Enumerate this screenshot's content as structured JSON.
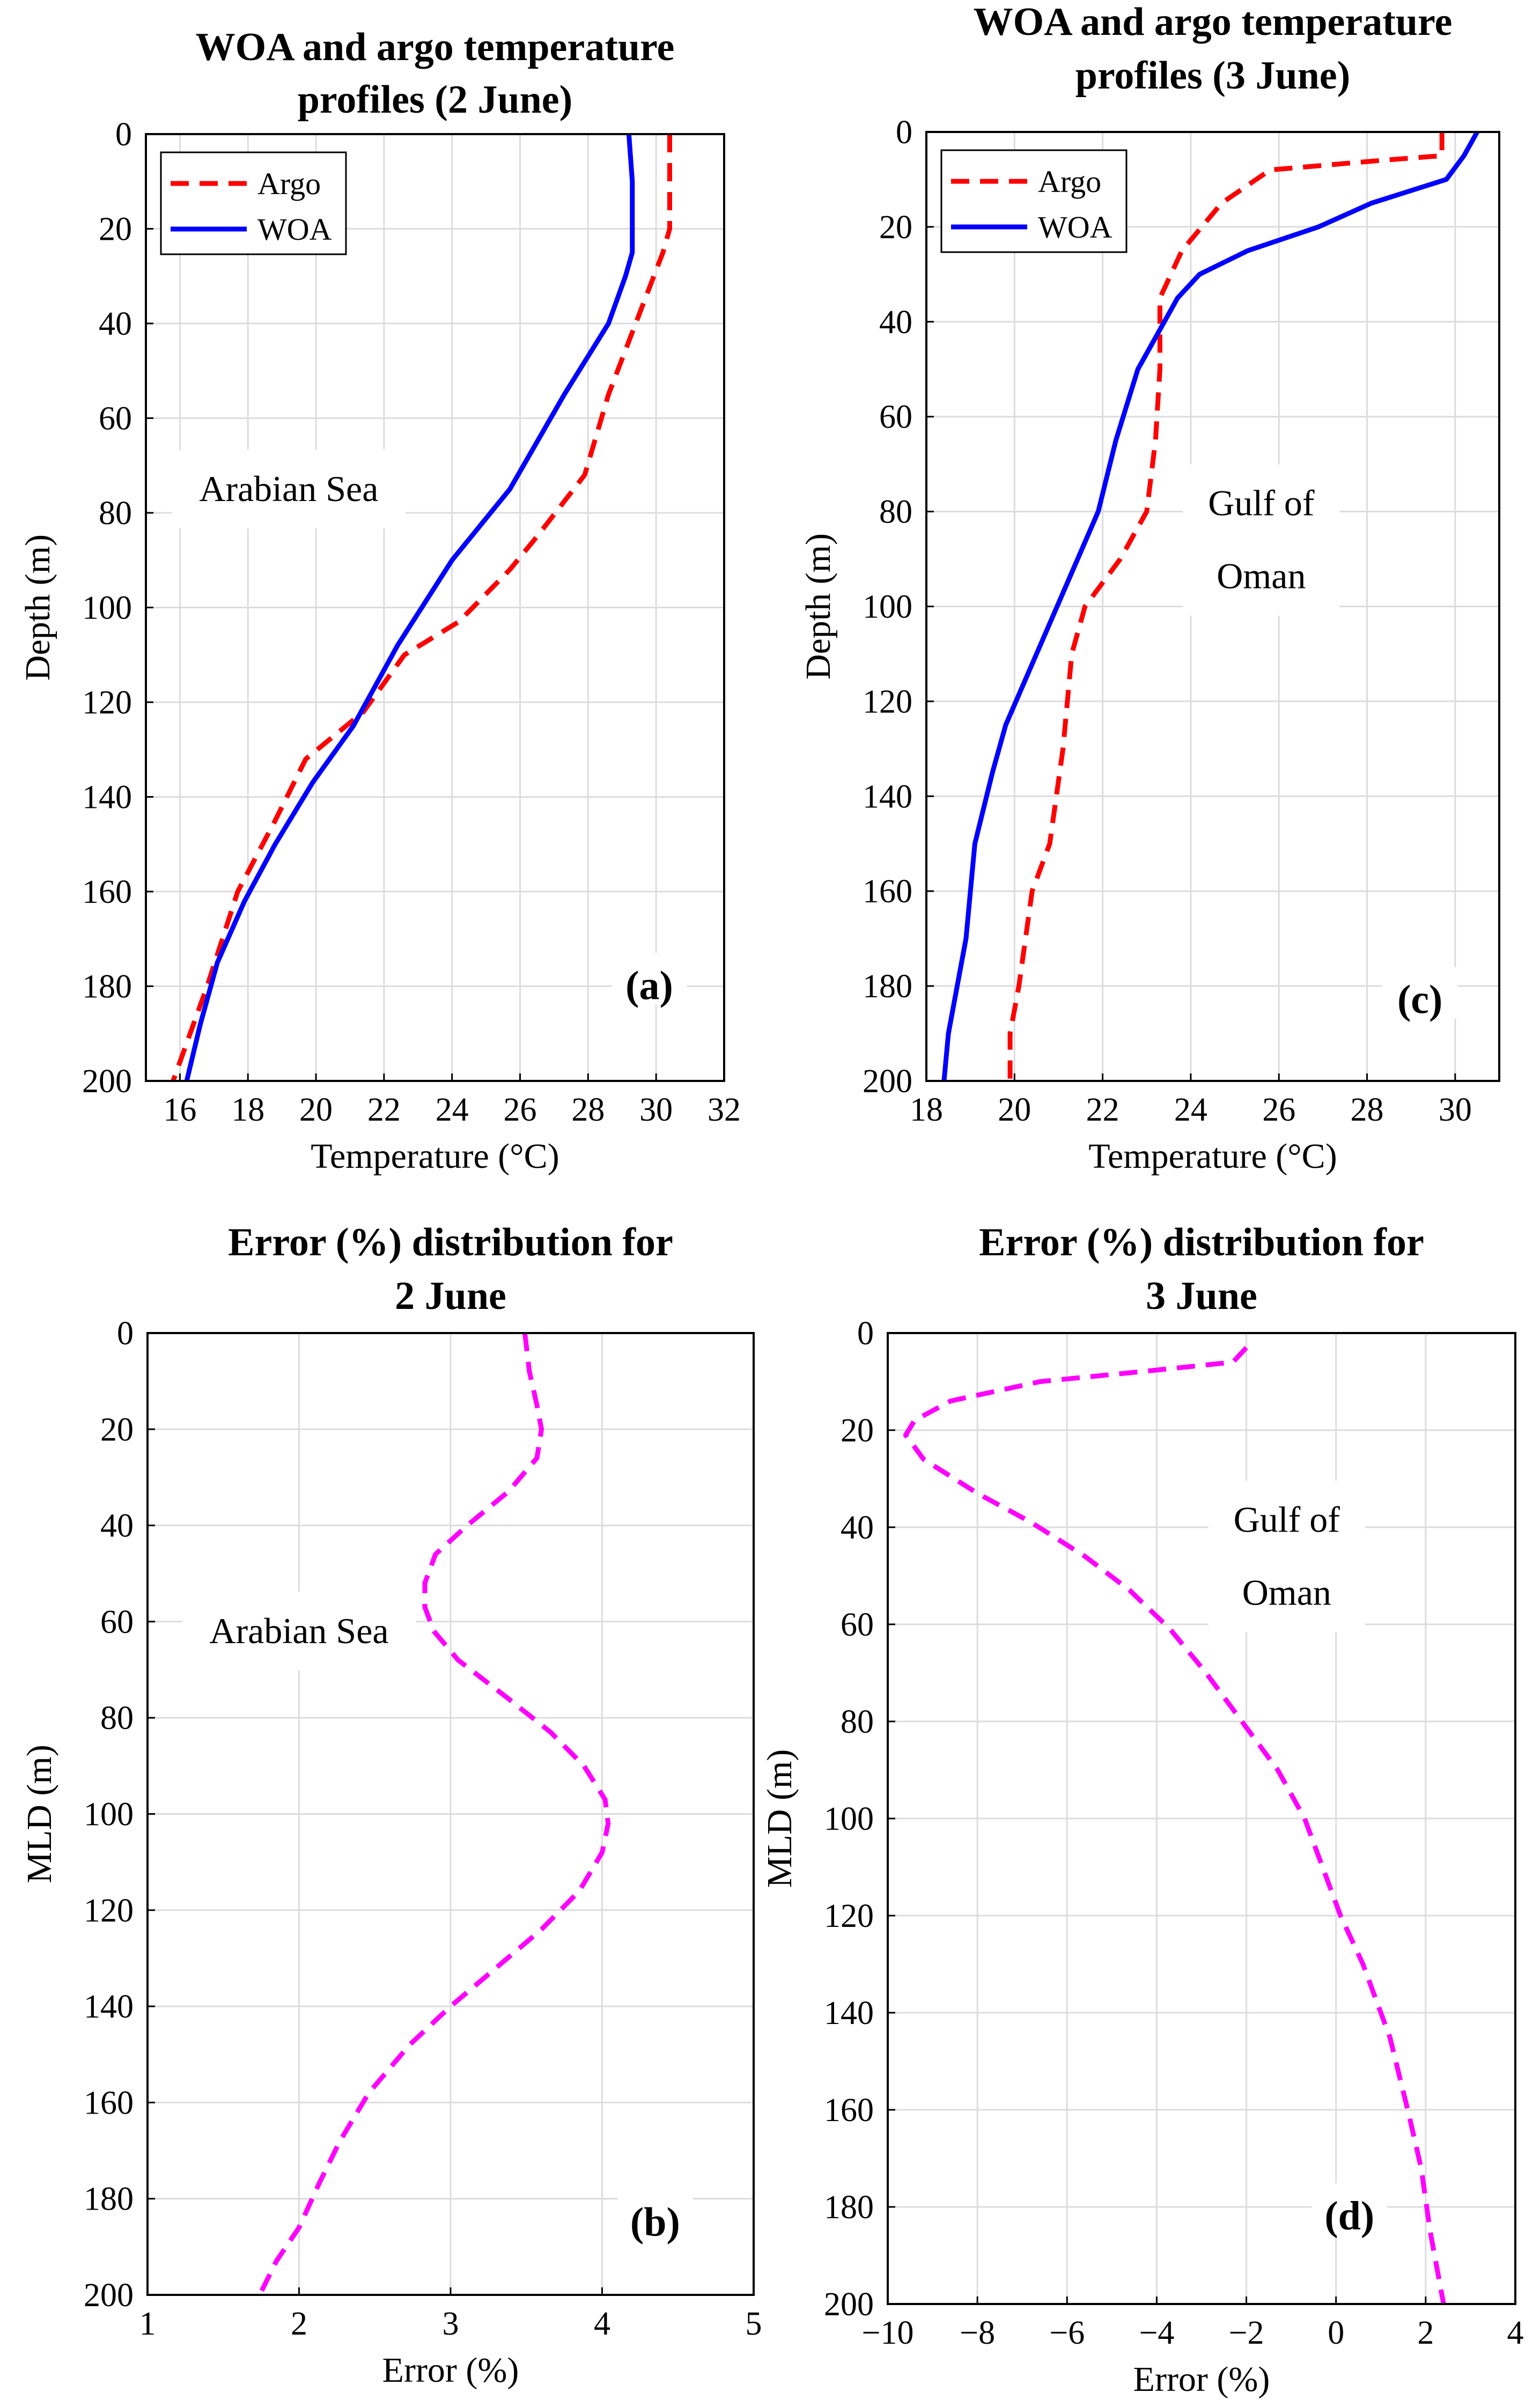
{
  "chart_data": [
    {
      "type": "line",
      "panel": "a",
      "title_lines": [
        "WOA and argo temperature",
        "profiles (2 June)"
      ],
      "xlabel": "Temperature (°C)",
      "ylabel": "Depth (m)",
      "xlim": [
        15,
        32
      ],
      "ylim": [
        0,
        200
      ],
      "y_reversed": true,
      "grid": true,
      "x_ticks": [
        16,
        18,
        20,
        22,
        24,
        26,
        28,
        30,
        32
      ],
      "x_tick_labels": [
        "16",
        "18",
        "20",
        "22",
        "24",
        "26",
        "28",
        "30",
        "32"
      ],
      "y_ticks": [
        0,
        20,
        40,
        60,
        80,
        100,
        120,
        140,
        160,
        180,
        200
      ],
      "y_tick_labels": [
        "0",
        "20",
        "40",
        "60",
        "80",
        "100",
        "120",
        "140",
        "160",
        "180",
        "200"
      ],
      "legend": {
        "placement": "top-left",
        "entries": [
          "Argo",
          "WOA"
        ]
      },
      "annotation": {
        "lines": [
          "Arabian Sea"
        ],
        "x": 19.2,
        "y": 75
      },
      "panel_label": {
        "text": "(a)",
        "x": 29.8,
        "y": 180
      },
      "series": [
        {
          "name": "Argo",
          "color": "#ff0000",
          "dash": "dashed",
          "points": [
            [
              30.4,
              0
            ],
            [
              30.4,
              10
            ],
            [
              30.4,
              20
            ],
            [
              30.2,
              25
            ],
            [
              29.4,
              40
            ],
            [
              28.6,
              55
            ],
            [
              27.9,
              72
            ],
            [
              26.5,
              85
            ],
            [
              25.7,
              92
            ],
            [
              24.2,
              103
            ],
            [
              22.6,
              110
            ],
            [
              21.4,
              122
            ],
            [
              19.7,
              132
            ],
            [
              18.8,
              145
            ],
            [
              17.7,
              160
            ],
            [
              16.8,
              180
            ],
            [
              16.2,
              192
            ],
            [
              15.8,
              200
            ]
          ]
        },
        {
          "name": "WOA",
          "color": "#0000ff",
          "dash": "solid",
          "points": [
            [
              29.2,
              0
            ],
            [
              29.3,
              10
            ],
            [
              29.3,
              25
            ],
            [
              29.1,
              30
            ],
            [
              28.6,
              40
            ],
            [
              27.3,
              55
            ],
            [
              25.7,
              75
            ],
            [
              24.0,
              90
            ],
            [
              22.4,
              108
            ],
            [
              21.1,
              125
            ],
            [
              19.9,
              137
            ],
            [
              18.8,
              150
            ],
            [
              17.9,
              162
            ],
            [
              17.1,
              175
            ],
            [
              16.6,
              188
            ],
            [
              16.2,
              200
            ]
          ]
        }
      ]
    },
    {
      "type": "line",
      "panel": "c",
      "title_lines": [
        "WOA and argo temperature",
        "profiles (3 June)"
      ],
      "xlabel": "Temperature (°C)",
      "ylabel": "Depth (m)",
      "xlim": [
        18,
        31
      ],
      "ylim": [
        0,
        200
      ],
      "y_reversed": true,
      "grid": true,
      "x_ticks": [
        18,
        20,
        22,
        24,
        26,
        28,
        30
      ],
      "x_tick_labels": [
        "18",
        "20",
        "22",
        "24",
        "26",
        "28",
        "30"
      ],
      "y_ticks": [
        0,
        20,
        40,
        60,
        80,
        100,
        120,
        140,
        160,
        180,
        200
      ],
      "y_tick_labels": [
        "0",
        "20",
        "40",
        "60",
        "80",
        "100",
        "120",
        "140",
        "160",
        "180",
        "200"
      ],
      "legend": {
        "placement": "top-left",
        "entries": [
          "Argo",
          "WOA"
        ]
      },
      "annotation": {
        "lines": [
          "Gulf of",
          "Oman"
        ],
        "x": 25.6,
        "y": 86
      },
      "panel_label": {
        "text": "(c)",
        "x": 29.2,
        "y": 183
      },
      "series": [
        {
          "name": "Argo",
          "color": "#ff0000",
          "dash": "dashed",
          "points": [
            [
              29.7,
              0
            ],
            [
              29.7,
              5
            ],
            [
              28.3,
              6
            ],
            [
              25.8,
              8
            ],
            [
              24.7,
              15
            ],
            [
              23.8,
              25
            ],
            [
              23.3,
              35
            ],
            [
              23.3,
              50
            ],
            [
              23.2,
              65
            ],
            [
              23.0,
              80
            ],
            [
              22.4,
              90
            ],
            [
              21.6,
              100
            ],
            [
              21.3,
              110
            ],
            [
              21.1,
              130
            ],
            [
              20.8,
              150
            ],
            [
              20.4,
              160
            ],
            [
              20.1,
              180
            ],
            [
              19.9,
              190
            ],
            [
              19.9,
              200
            ]
          ]
        },
        {
          "name": "WOA",
          "color": "#0000ff",
          "dash": "solid",
          "points": [
            [
              30.5,
              0
            ],
            [
              30.2,
              5
            ],
            [
              29.8,
              10
            ],
            [
              28.1,
              15
            ],
            [
              26.9,
              20
            ],
            [
              25.3,
              25
            ],
            [
              24.2,
              30
            ],
            [
              23.7,
              35
            ],
            [
              23.4,
              40
            ],
            [
              23.1,
              45
            ],
            [
              22.8,
              50
            ],
            [
              22.3,
              65
            ],
            [
              21.9,
              80
            ],
            [
              21.2,
              95
            ],
            [
              20.5,
              110
            ],
            [
              19.8,
              125
            ],
            [
              19.5,
              135
            ],
            [
              19.1,
              150
            ],
            [
              18.9,
              170
            ],
            [
              18.7,
              180
            ],
            [
              18.5,
              190
            ],
            [
              18.4,
              200
            ]
          ]
        }
      ]
    },
    {
      "type": "line",
      "panel": "b",
      "title_lines": [
        "Error (%) distribution for",
        "2 June"
      ],
      "xlabel": "Error (%)",
      "ylabel": "MLD (m)",
      "xlim": [
        1,
        5
      ],
      "ylim": [
        0,
        200
      ],
      "y_reversed": true,
      "grid": true,
      "x_ticks": [
        1,
        2,
        3,
        4,
        5
      ],
      "x_tick_labels": [
        "1",
        "2",
        "3",
        "4",
        "5"
      ],
      "y_ticks": [
        0,
        20,
        40,
        60,
        80,
        100,
        120,
        140,
        160,
        180,
        200
      ],
      "y_tick_labels": [
        "0",
        "20",
        "40",
        "60",
        "80",
        "100",
        "120",
        "140",
        "160",
        "180",
        "200"
      ],
      "annotation": {
        "lines": [
          "Arabian Sea"
        ],
        "x": 2.0,
        "y": 62
      },
      "panel_label": {
        "text": "(b)",
        "x": 4.35,
        "y": 185
      },
      "series": [
        {
          "name": "Error",
          "color": "#ff00ff",
          "dash": "dashed",
          "points": [
            [
              3.49,
              0
            ],
            [
              3.52,
              8
            ],
            [
              3.57,
              15
            ],
            [
              3.6,
              20
            ],
            [
              3.57,
              26
            ],
            [
              3.38,
              33
            ],
            [
              3.11,
              40
            ],
            [
              2.9,
              46
            ],
            [
              2.83,
              52
            ],
            [
              2.83,
              57
            ],
            [
              2.89,
              62
            ],
            [
              3.05,
              68
            ],
            [
              3.38,
              76
            ],
            [
              3.66,
              83
            ],
            [
              3.88,
              90
            ],
            [
              4.02,
              97
            ],
            [
              4.04,
              102
            ],
            [
              4.0,
              108
            ],
            [
              3.85,
              116
            ],
            [
              3.6,
              124
            ],
            [
              3.3,
              132
            ],
            [
              3.0,
              140
            ],
            [
              2.73,
              148
            ],
            [
              2.46,
              158
            ],
            [
              2.27,
              168
            ],
            [
              2.13,
              177
            ],
            [
              2.0,
              186
            ],
            [
              1.85,
              193
            ],
            [
              1.74,
              200
            ]
          ]
        }
      ]
    },
    {
      "type": "line",
      "panel": "d",
      "title_lines": [
        "Error (%) distribution for",
        "3 June"
      ],
      "xlabel": "Error (%)",
      "ylabel": "MLD (m)",
      "xlim": [
        -10,
        4
      ],
      "ylim": [
        0,
        200
      ],
      "y_reversed": true,
      "grid": true,
      "x_ticks": [
        -10,
        -8,
        -6,
        -4,
        -2,
        0,
        2,
        4
      ],
      "x_tick_labels": [
        "−10",
        "−8",
        "−6",
        "−4",
        "−2",
        "0",
        "2",
        "4"
      ],
      "y_ticks": [
        0,
        20,
        40,
        60,
        80,
        100,
        120,
        140,
        160,
        180,
        200
      ],
      "y_tick_labels": [
        "0",
        "20",
        "40",
        "60",
        "80",
        "100",
        "120",
        "140",
        "160",
        "180",
        "200"
      ],
      "annotation": {
        "lines": [
          "Gulf of",
          "Oman"
        ],
        "x": -1.1,
        "y": 46
      },
      "panel_label": {
        "text": "(d)",
        "x": 0.3,
        "y": 182
      },
      "series": [
        {
          "name": "Error",
          "color": "#ff00ff",
          "dash": "dashed",
          "points": [
            [
              -2.0,
              3
            ],
            [
              -2.3,
              6
            ],
            [
              -4.4,
              8
            ],
            [
              -6.6,
              10
            ],
            [
              -8.6,
              14
            ],
            [
              -9.4,
              18
            ],
            [
              -9.6,
              21
            ],
            [
              -9.2,
              26
            ],
            [
              -8.0,
              33
            ],
            [
              -6.8,
              39
            ],
            [
              -5.6,
              46
            ],
            [
              -4.6,
              53
            ],
            [
              -3.7,
              61
            ],
            [
              -2.9,
              70
            ],
            [
              -2.1,
              80
            ],
            [
              -1.3,
              90
            ],
            [
              -0.7,
              100
            ],
            [
              -0.3,
              110
            ],
            [
              0.1,
              120
            ],
            [
              0.6,
              130
            ],
            [
              1.2,
              145
            ],
            [
              1.6,
              160
            ],
            [
              1.9,
              172
            ],
            [
              2.1,
              185
            ],
            [
              2.3,
              195
            ],
            [
              2.4,
              200
            ]
          ]
        }
      ]
    }
  ]
}
